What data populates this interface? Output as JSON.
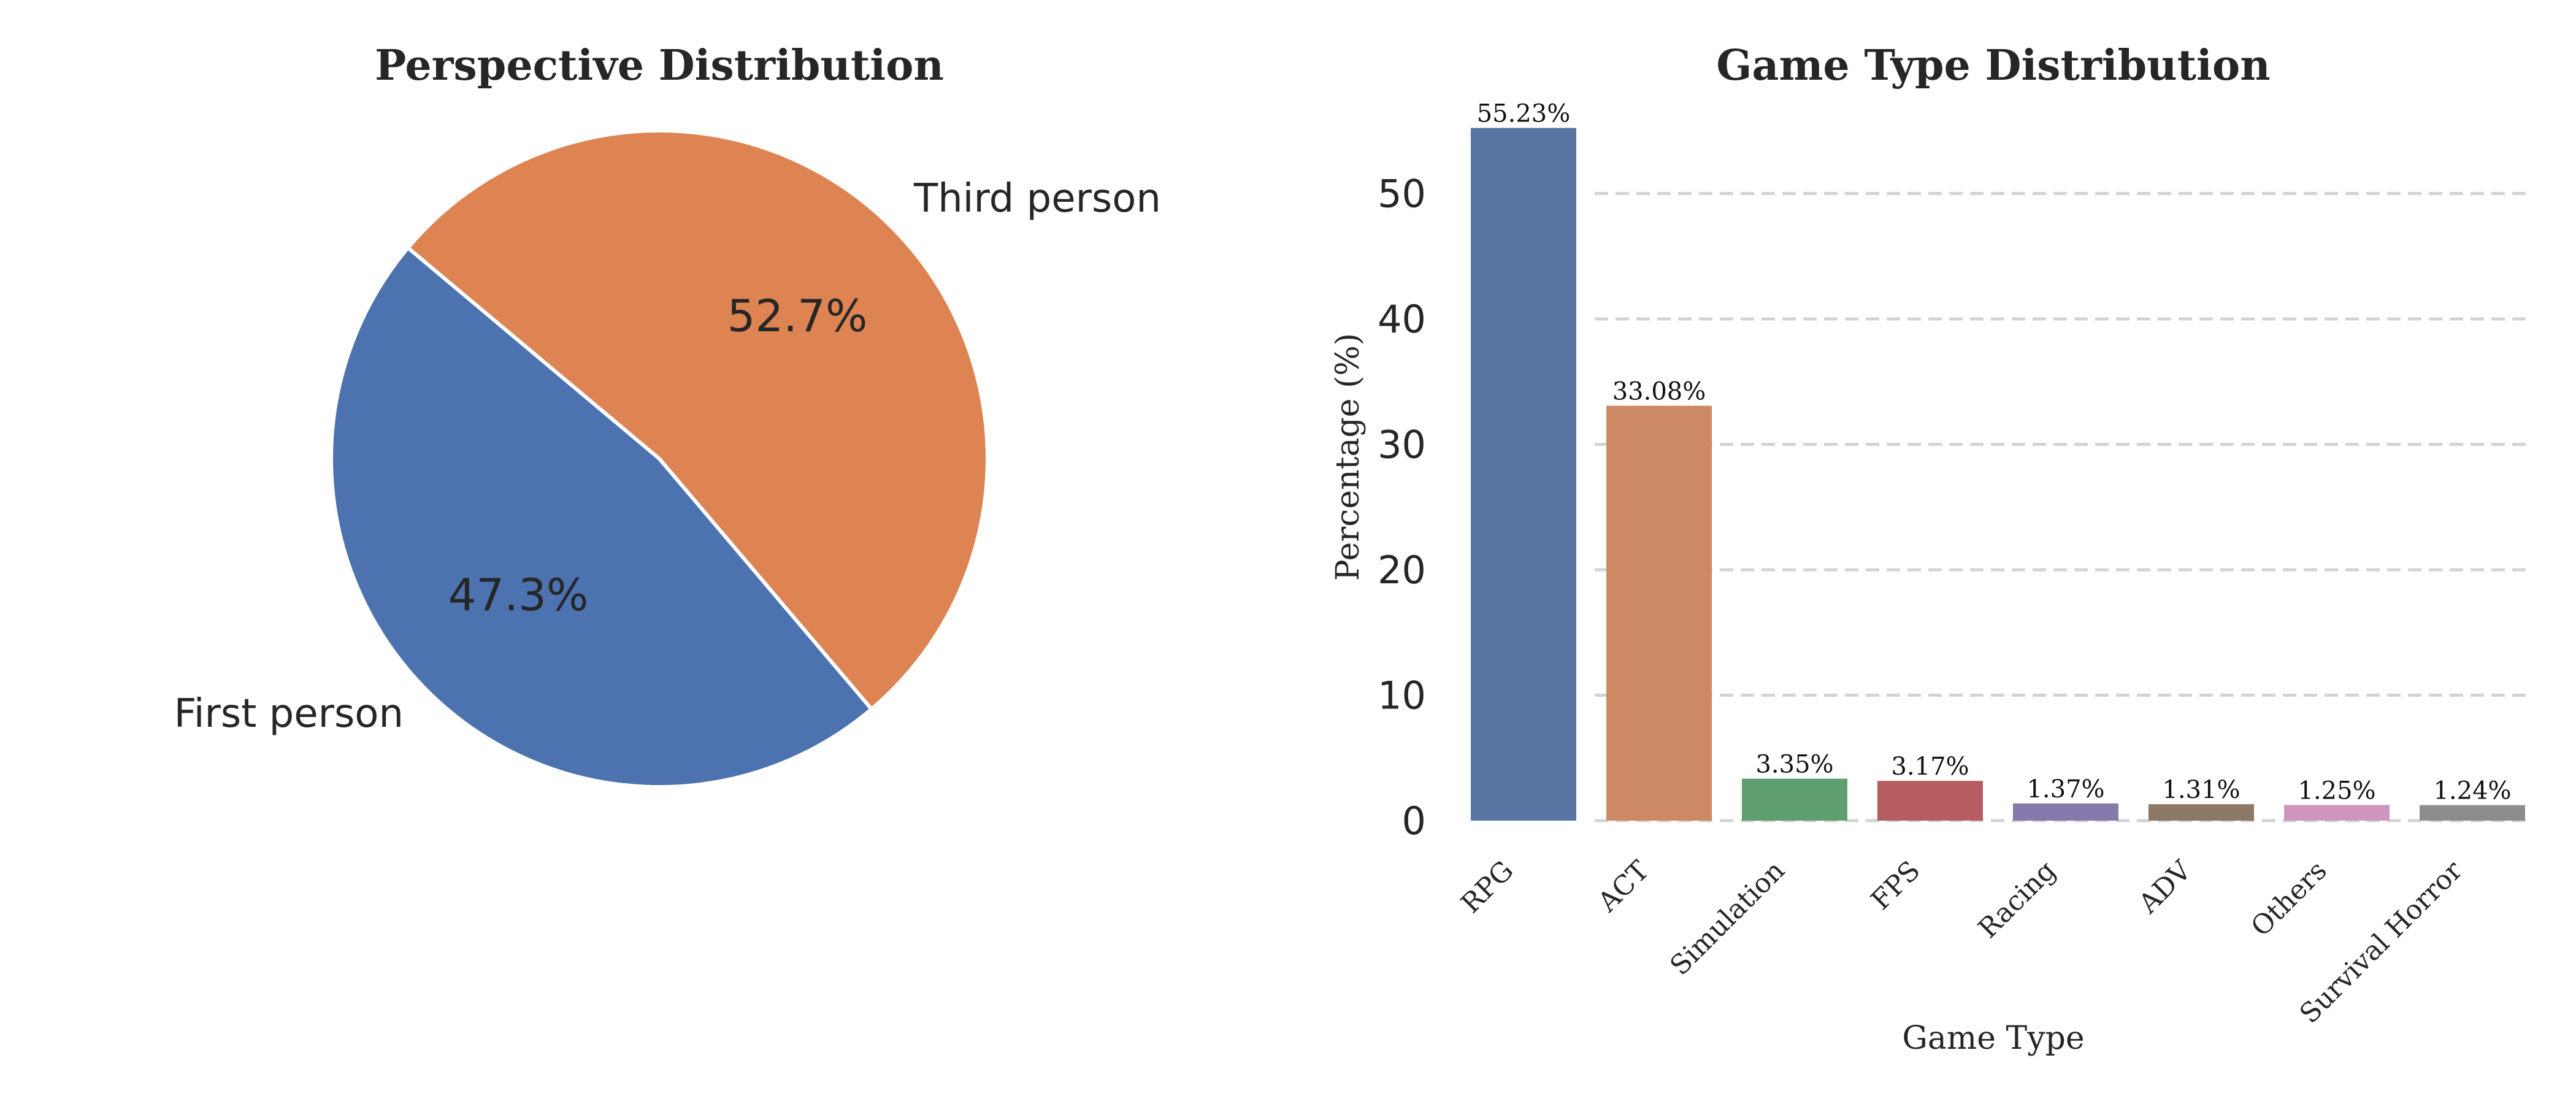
{
  "chart_data": [
    {
      "type": "pie",
      "title": "Perspective Distribution",
      "slices": [
        {
          "label": "Third person",
          "value": 52.7,
          "pct_label": "52.7%",
          "color": "#dd8452"
        },
        {
          "label": "First person",
          "value": 47.3,
          "pct_label": "47.3%",
          "color": "#4c72b0"
        }
      ]
    },
    {
      "type": "bar",
      "title": "Game Type Distribution",
      "xlabel": "Game Type",
      "ylabel": "Percentage (%)",
      "ylim": [
        0,
        55.23
      ],
      "yticks": [
        "0",
        "10",
        "20",
        "30",
        "40",
        "50"
      ],
      "grid": true,
      "categories": [
        "RPG",
        "ACT",
        "Simulation",
        "FPS",
        "Racing",
        "ADV",
        "Others",
        "Survival Horror"
      ],
      "values": [
        55.23,
        33.08,
        3.35,
        3.17,
        1.37,
        1.31,
        1.25,
        1.24
      ],
      "value_labels": [
        "55.23%",
        "33.08%",
        "3.35%",
        "3.17%",
        "1.37%",
        "1.31%",
        "1.25%",
        "1.24%"
      ],
      "colors": [
        "#5975a4",
        "#cc8963",
        "#5f9e6e",
        "#b55d60",
        "#857aab",
        "#8d7866",
        "#d095bf",
        "#8c8c8c"
      ]
    }
  ]
}
